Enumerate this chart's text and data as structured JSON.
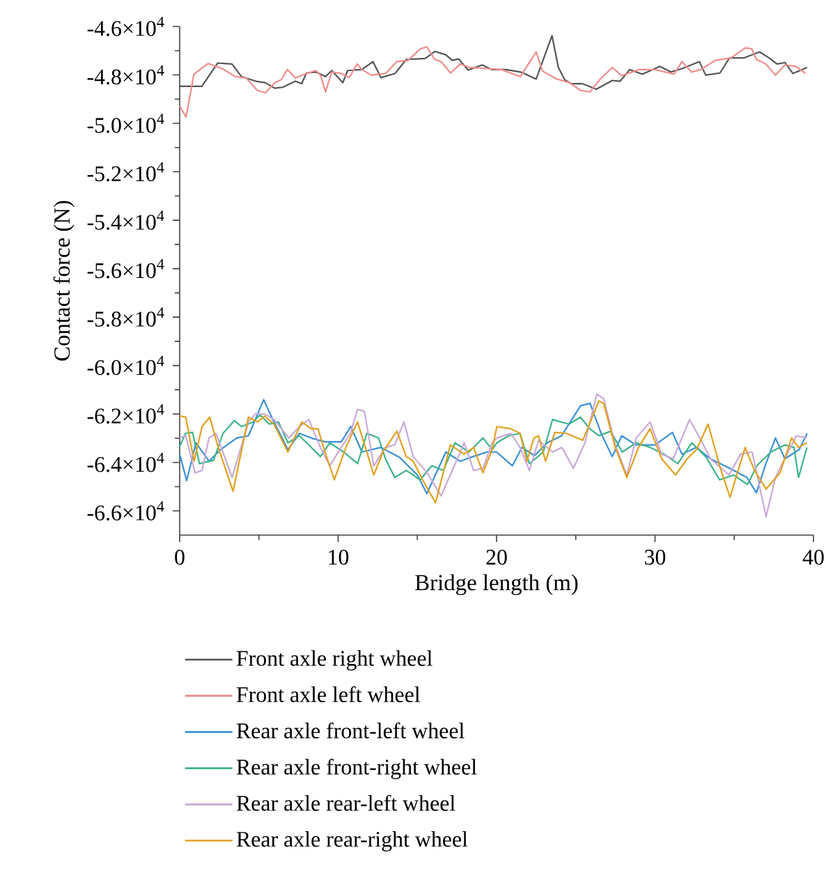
{
  "chart_data": {
    "type": "line",
    "xlabel": "Bridge length (m)",
    "ylabel": "Contact force (N)",
    "xlim": [
      0,
      40
    ],
    "xticks": [
      0,
      10,
      20,
      30,
      40
    ],
    "ylim": [
      -67000,
      -46000
    ],
    "yticks": [
      {
        "value": -46000,
        "label": "-4.6×10$^{4}$"
      },
      {
        "value": -48000,
        "label": "-4.8×10$^{4}$"
      },
      {
        "value": -50000,
        "label": "-5.0×10$^{4}$"
      },
      {
        "value": -52000,
        "label": "-5.2×10$^{4}$"
      },
      {
        "value": -54000,
        "label": "-5.4×10$^{4}$"
      },
      {
        "value": -56000,
        "label": "-5.6×10$^{4}$"
      },
      {
        "value": -58000,
        "label": "-5.8×10$^{4}$"
      },
      {
        "value": -60000,
        "label": "-6.0×10$^{4}$"
      },
      {
        "value": -62000,
        "label": "-6.2×10$^{4}$"
      },
      {
        "value": -64000,
        "label": "-6.4×10$^{4}$"
      },
      {
        "value": -66000,
        "label": "-6.6×10$^{4}$"
      }
    ],
    "legend": "bottom",
    "series": [
      {
        "name": "Front axle right wheel",
        "color": "#555555",
        "x": [
          0,
          1.4,
          2.4,
          3.3,
          3.9,
          4.8,
          5.4,
          6.0,
          6.5,
          7.3,
          7.7,
          8.0,
          8.6,
          9.2,
          9.6,
          10.3,
          10.6,
          11.5,
          12.2,
          12.7,
          13.6,
          14.3,
          15.0,
          15.5,
          16.1,
          16.8,
          17.2,
          17.6,
          18.2,
          19.1,
          19.7,
          20.6,
          21.5,
          22.5,
          23.5,
          23.9,
          24.3,
          24.7,
          25.4,
          26.3,
          27.3,
          27.8,
          28.4,
          29.2,
          30.3,
          31.0,
          31.7,
          32.8,
          33.2,
          34.1,
          34.7,
          35.6,
          36.6,
          37.2,
          37.7,
          38.2,
          38.7,
          39.6
        ],
        "values": [
          -48470,
          -48470,
          -47510,
          -47550,
          -48070,
          -48260,
          -48320,
          -48550,
          -48510,
          -48260,
          -48360,
          -47920,
          -47880,
          -48070,
          -47820,
          -48320,
          -47820,
          -47780,
          -47450,
          -48110,
          -47940,
          -47360,
          -47340,
          -47320,
          -47030,
          -47170,
          -47400,
          -47340,
          -47800,
          -47590,
          -47780,
          -47780,
          -47880,
          -48170,
          -46380,
          -47690,
          -48200,
          -48360,
          -48360,
          -48590,
          -48230,
          -48260,
          -47780,
          -47970,
          -47650,
          -47880,
          -47740,
          -47450,
          -48010,
          -47920,
          -47300,
          -47300,
          -47050,
          -47300,
          -47550,
          -47490,
          -47940,
          -47690
        ]
      },
      {
        "name": "Front axle left wheel",
        "color": "#f08c8c",
        "x": [
          0,
          0.4,
          0.9,
          1.8,
          2.7,
          3.5,
          4.2,
          4.9,
          5.4,
          6.0,
          6.4,
          6.8,
          7.3,
          8.0,
          8.6,
          8.9,
          9.2,
          9.6,
          10.2,
          10.7,
          11.2,
          11.5,
          12.1,
          13.0,
          13.7,
          14.4,
          15.2,
          15.6,
          16.1,
          16.5,
          17.1,
          17.7,
          18.3,
          19.4,
          20.3,
          21.5,
          22.5,
          22.9,
          23.8,
          24.6,
          25.3,
          25.9,
          26.5,
          27.3,
          27.9,
          29.0,
          30.0,
          31.2,
          31.7,
          32.3,
          32.9,
          33.8,
          34.8,
          35.7,
          36.1,
          36.4,
          37.0,
          37.6,
          38.2,
          38.9,
          39.5
        ],
        "values": [
          -49280,
          -49740,
          -47970,
          -47530,
          -47740,
          -48070,
          -48130,
          -48640,
          -48740,
          -48320,
          -48200,
          -47780,
          -48130,
          -47940,
          -47820,
          -48030,
          -48700,
          -47880,
          -47940,
          -48110,
          -47550,
          -47780,
          -48010,
          -47940,
          -47450,
          -47400,
          -46920,
          -46840,
          -47360,
          -47450,
          -47920,
          -47550,
          -47690,
          -47740,
          -47780,
          -48070,
          -47050,
          -47840,
          -48170,
          -48320,
          -48640,
          -48700,
          -48200,
          -47690,
          -48030,
          -47780,
          -47780,
          -47970,
          -47450,
          -47880,
          -47780,
          -47400,
          -47300,
          -46880,
          -46920,
          -47360,
          -47550,
          -48010,
          -47590,
          -47650,
          -47940
        ]
      },
      {
        "name": "Rear axle front-left wheel",
        "color": "#3a8fd6",
        "x": [
          0,
          0.44,
          1.03,
          1.85,
          2.58,
          3.6,
          4.34,
          5.3,
          5.95,
          6.83,
          7.56,
          8.29,
          9.17,
          10.2,
          10.8,
          11.5,
          12.7,
          13.9,
          15.0,
          15.6,
          16.8,
          17.7,
          18.5,
          19.4,
          20.0,
          21.0,
          21.6,
          22.4,
          23.2,
          24.1,
          25.3,
          25.9,
          26.6,
          27.3,
          27.9,
          28.8,
          30.0,
          31.1,
          31.7,
          32.6,
          33.5,
          34.7,
          35.8,
          36.4,
          37.0,
          37.6,
          38.2,
          39.1,
          39.6
        ],
        "values": [
          -63660,
          -64750,
          -63190,
          -63950,
          -63470,
          -62990,
          -62900,
          -61410,
          -62330,
          -63470,
          -62800,
          -62990,
          -63150,
          -63150,
          -62520,
          -63570,
          -63380,
          -63800,
          -64520,
          -65290,
          -63570,
          -63950,
          -63760,
          -63570,
          -63570,
          -64140,
          -63380,
          -63720,
          -63190,
          -62900,
          -61660,
          -61560,
          -62800,
          -63760,
          -62900,
          -63280,
          -63280,
          -62760,
          -63660,
          -63380,
          -63850,
          -64240,
          -64620,
          -65250,
          -64050,
          -62990,
          -63850,
          -63470,
          -62800
        ]
      },
      {
        "name": "Rear axle front-right wheel",
        "color": "#3db389",
        "x": [
          0,
          0.37,
          0.81,
          1.25,
          2.14,
          2.73,
          3.46,
          3.9,
          4.63,
          5.07,
          5.66,
          6.24,
          6.83,
          7.56,
          8.15,
          8.88,
          9.47,
          10.35,
          11.23,
          11.81,
          12.55,
          12.99,
          13.57,
          14.3,
          15.18,
          15.91,
          16.65,
          17.38,
          18.26,
          19.14,
          19.72,
          20.02,
          20.75,
          21.48,
          22.07,
          22.95,
          23.53,
          24.56,
          25.29,
          25.88,
          26.46,
          27.2,
          27.93,
          28.81,
          29.69,
          30.57,
          31.44,
          32.32,
          33.2,
          34.08,
          34.96,
          35.84,
          36.43,
          37.31,
          38.18,
          38.77,
          39.06,
          39.59
        ],
        "values": [
          -63340,
          -62800,
          -62760,
          -64050,
          -63910,
          -62800,
          -62270,
          -62520,
          -62330,
          -62040,
          -62420,
          -62330,
          -63190,
          -62900,
          -63280,
          -63760,
          -63190,
          -63570,
          -64050,
          -62800,
          -62990,
          -63850,
          -64620,
          -64330,
          -64720,
          -64140,
          -64330,
          -63190,
          -63570,
          -62990,
          -63470,
          -63190,
          -62900,
          -62800,
          -64050,
          -63570,
          -62230,
          -62420,
          -62130,
          -62610,
          -62900,
          -62710,
          -63570,
          -63190,
          -63380,
          -63660,
          -64050,
          -63190,
          -63760,
          -64720,
          -64520,
          -64910,
          -64140,
          -63570,
          -63280,
          -63380,
          -64620,
          -63380
        ]
      },
      {
        "name": "Rear axle rear-left wheel",
        "color": "#c9a9d9",
        "x": [
          0,
          0.38,
          0.97,
          1.41,
          1.85,
          2.29,
          3.31,
          4.34,
          4.78,
          5.36,
          5.95,
          6.89,
          7.56,
          8.15,
          8.88,
          9.47,
          10.2,
          10.78,
          11.22,
          11.66,
          12.25,
          12.98,
          13.57,
          14.15,
          14.74,
          15.62,
          16.5,
          17.08,
          17.96,
          18.55,
          19.14,
          19.72,
          20.02,
          20.9,
          21.48,
          22.07,
          22.65,
          23.53,
          24.12,
          24.85,
          25.58,
          26.32,
          26.76,
          27.49,
          28.22,
          28.81,
          29.69,
          30.42,
          31.15,
          32.18,
          32.91,
          33.5,
          34.67,
          35.4,
          36.13,
          37.01,
          37.6,
          38.33,
          38.92,
          39.59
        ],
        "values": [
          -62990,
          -62900,
          -64430,
          -64330,
          -62990,
          -62800,
          -64620,
          -62330,
          -62000,
          -62000,
          -62230,
          -62990,
          -62520,
          -62230,
          -63380,
          -64140,
          -63380,
          -62800,
          -61810,
          -61890,
          -64140,
          -63380,
          -63280,
          -62330,
          -63760,
          -64430,
          -65380,
          -64520,
          -63190,
          -64330,
          -64240,
          -63190,
          -62990,
          -62800,
          -63380,
          -64330,
          -63090,
          -63570,
          -63380,
          -64240,
          -63190,
          -61180,
          -61370,
          -63280,
          -64520,
          -62990,
          -62330,
          -63660,
          -63850,
          -62230,
          -63090,
          -63850,
          -64520,
          -63660,
          -63570,
          -66240,
          -64620,
          -63660,
          -62900,
          -62990
        ]
      },
      {
        "name": "Rear axle rear-right wheel",
        "color": "#e0a020",
        "x": [
          0,
          0.38,
          0.91,
          1.41,
          1.9,
          2.43,
          3.37,
          4.34,
          4.92,
          5.36,
          5.95,
          6.83,
          7.71,
          8.29,
          8.73,
          9.17,
          9.76,
          10.49,
          11.22,
          11.81,
          12.25,
          12.83,
          13.71,
          14.3,
          14.74,
          15.33,
          16.15,
          17.08,
          17.96,
          18.55,
          19.14,
          19.72,
          20.02,
          20.9,
          21.48,
          21.92,
          22.36,
          22.65,
          23.09,
          23.68,
          24.41,
          25.44,
          26.46,
          26.76,
          27.49,
          28.22,
          28.96,
          29.69,
          30.42,
          31.3,
          32.03,
          32.62,
          33.35,
          34.08,
          34.73,
          35.69,
          36.28,
          37.01,
          37.89,
          38.62,
          39.06,
          39.59
        ],
        "values": [
          -62080,
          -62130,
          -63950,
          -62520,
          -62130,
          -63380,
          -65190,
          -62130,
          -62330,
          -62080,
          -62420,
          -63570,
          -62330,
          -62610,
          -62610,
          -63570,
          -64720,
          -63380,
          -62330,
          -63570,
          -64520,
          -63570,
          -62710,
          -63760,
          -63950,
          -64720,
          -65670,
          -63280,
          -63660,
          -63380,
          -64430,
          -63470,
          -62520,
          -62610,
          -62800,
          -63950,
          -62990,
          -62900,
          -63950,
          -62760,
          -62800,
          -63090,
          -61460,
          -61560,
          -63380,
          -64620,
          -63380,
          -62610,
          -63850,
          -64520,
          -63850,
          -63470,
          -62420,
          -64140,
          -65440,
          -63380,
          -64330,
          -65100,
          -64430,
          -62990,
          -63380,
          -63190
        ]
      }
    ]
  }
}
